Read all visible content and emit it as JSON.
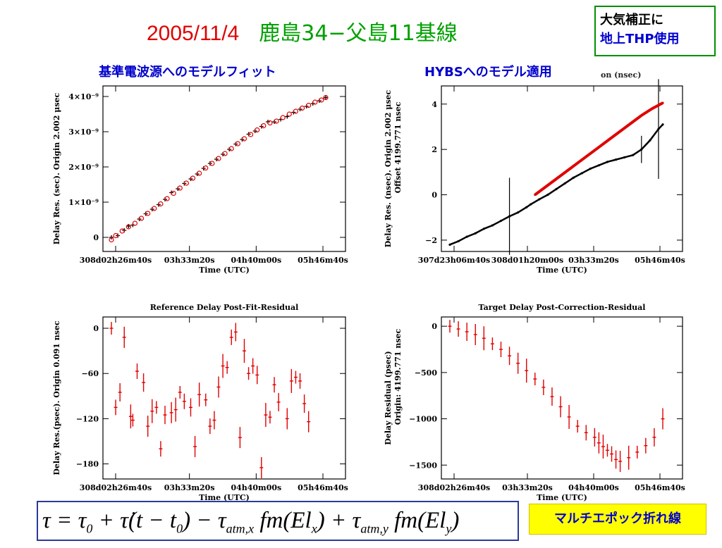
{
  "header": {
    "date": "2005/11/4",
    "title": "鹿島34−父島11基線",
    "note_line1": "大気補正に",
    "note_line2": "地上THP使用"
  },
  "subheaders": {
    "left": "基準電波源へのモデルフィット",
    "right": "HYBSへのモデル適用",
    "right_cut_label": "on (nsec)"
  },
  "formula": {
    "text": "τ = τ0 + τ̇(t − t0) − τatm,x fm(Elx) + τatm,y fm(Ely)"
  },
  "footer_badge": "マルチエポック折れ線",
  "colors": {
    "red": "#e00000",
    "black": "#000000",
    "green": "#00a000",
    "blue": "#0000cc"
  },
  "chart_data": [
    {
      "type": "scatter",
      "title": "",
      "xlabel": "Time (UTC)",
      "ylabel": "Delay Res. (sec). Origin 2.002 μsec",
      "x_ticks": [
        "308d02h26m40s",
        "03h33m20s",
        "04h40m00s",
        "05h46m40s"
      ],
      "y_ticks": [
        "0",
        "1×10⁻⁹",
        "2×10⁻⁹",
        "3×10⁻⁹",
        "4×10⁻⁹"
      ],
      "ylim": [
        -4e-10,
        4.3e-09
      ],
      "series": [
        {
          "color": "black",
          "marker": "plus",
          "x": [
            0.0,
            0.03,
            0.06,
            0.08,
            0.1,
            0.13,
            0.16,
            0.19,
            0.22,
            0.25,
            0.28,
            0.31,
            0.34,
            0.37,
            0.4,
            0.43,
            0.46,
            0.49,
            0.52,
            0.55,
            0.58,
            0.61,
            0.64,
            0.67,
            0.7,
            0.73,
            0.76,
            0.79,
            0.82,
            0.85,
            0.88,
            0.91,
            0.94,
            0.97,
            1.0
          ],
          "y": [
            0.0,
            5e-11,
            2e-10,
            3.2e-10,
            3.5e-10,
            5.2e-10,
            6.7e-10,
            8e-10,
            9.3e-10,
            1.08e-09,
            1.27e-09,
            1.38e-09,
            1.53e-09,
            1.66e-09,
            1.8e-09,
            1.96e-09,
            2.1e-09,
            2.22e-09,
            2.36e-09,
            2.5e-09,
            2.65e-09,
            2.78e-09,
            2.93e-09,
            3.02e-09,
            3.15e-09,
            3.28e-09,
            3.28e-09,
            3.35e-09,
            3.43e-09,
            3.55e-09,
            3.64e-09,
            3.72e-09,
            3.8e-09,
            3.88e-09,
            3.97e-09
          ]
        },
        {
          "color": "red",
          "marker": "circle",
          "x": [
            0.0,
            0.02,
            0.05,
            0.08,
            0.11,
            0.14,
            0.17,
            0.2,
            0.23,
            0.26,
            0.29,
            0.32,
            0.35,
            0.38,
            0.41,
            0.44,
            0.47,
            0.5,
            0.53,
            0.56,
            0.59,
            0.62,
            0.65,
            0.68,
            0.71,
            0.74,
            0.77,
            0.8,
            0.83,
            0.86,
            0.89,
            0.92,
            0.95,
            0.98,
            1.0
          ],
          "y": [
            -7e-11,
            5e-11,
            1.8e-10,
            3e-10,
            4e-10,
            5.4e-10,
            6.8e-10,
            8.2e-10,
            9.5e-10,
            1.1e-09,
            1.25e-09,
            1.4e-09,
            1.54e-09,
            1.68e-09,
            1.82e-09,
            1.97e-09,
            2.1e-09,
            2.24e-09,
            2.38e-09,
            2.52e-09,
            2.66e-09,
            2.8e-09,
            2.92e-09,
            3.05e-09,
            3.17e-09,
            3.25e-09,
            3.3e-09,
            3.4e-09,
            3.5e-09,
            3.58e-09,
            3.67e-09,
            3.75e-09,
            3.84e-09,
            3.9e-09,
            3.97e-09
          ]
        }
      ]
    },
    {
      "type": "line",
      "title": "",
      "xlabel": "Time (UTC)",
      "ylabel": "Delay Res. (nsec). Origin 2.002 μsec",
      "ylabel_right": "Offset 4199.771 nsec",
      "x_ticks": [
        "307d23h06m40s",
        "308d01h20m00s",
        "03h33m20s",
        "05h46m40s"
      ],
      "y_ticks": [
        "−2",
        "0",
        "2",
        "4"
      ],
      "ylim": [
        -2.5,
        4.8
      ],
      "series": [
        {
          "color": "black",
          "x": [
            0.0,
            0.04,
            0.08,
            0.12,
            0.16,
            0.2,
            0.24,
            0.28,
            0.32,
            0.36,
            0.38,
            0.42,
            0.46,
            0.5,
            0.54,
            0.58,
            0.62,
            0.66,
            0.7,
            0.74,
            0.78,
            0.82,
            0.86,
            0.9,
            0.94,
            0.98,
            1.0
          ],
          "y": [
            -2.2,
            -2.05,
            -1.85,
            -1.7,
            -1.5,
            -1.35,
            -1.15,
            -0.95,
            -0.78,
            -0.55,
            -0.42,
            -0.2,
            0.0,
            0.25,
            0.5,
            0.75,
            0.95,
            1.15,
            1.3,
            1.45,
            1.55,
            1.65,
            1.75,
            2.0,
            2.4,
            2.9,
            3.1
          ]
        },
        {
          "color": "red",
          "x": [
            0.4,
            0.45,
            0.5,
            0.55,
            0.6,
            0.65,
            0.7,
            0.75,
            0.8,
            0.85,
            0.9,
            0.95,
            1.0
          ],
          "y": [
            0.0,
            0.35,
            0.7,
            1.05,
            1.4,
            1.75,
            2.1,
            2.45,
            2.8,
            3.15,
            3.5,
            3.8,
            4.05
          ]
        }
      ]
    },
    {
      "type": "scatter",
      "title": "Reference Delay Post-Fit-Residual",
      "xlabel": "Time (UTC)",
      "ylabel": "Delay Res.(psec). Origin 0.091 nsec",
      "x_ticks": [
        "308d02h26m40s",
        "03h33m20s",
        "04h40m00s",
        "05h46m40s"
      ],
      "y_ticks": [
        "0",
        "−60",
        "−120",
        "−180"
      ],
      "ylim": [
        -200,
        15
      ],
      "series": [
        {
          "color": "red",
          "marker": "errorbar",
          "x": [
            0.0,
            0.02,
            0.04,
            0.06,
            0.09,
            0.1,
            0.12,
            0.15,
            0.17,
            0.19,
            0.21,
            0.23,
            0.25,
            0.28,
            0.3,
            0.32,
            0.34,
            0.37,
            0.39,
            0.41,
            0.44,
            0.46,
            0.48,
            0.5,
            0.52,
            0.54,
            0.56,
            0.58,
            0.6,
            0.62,
            0.64,
            0.66,
            0.68,
            0.7,
            0.72,
            0.74,
            0.76,
            0.78,
            0.82,
            0.84,
            0.86,
            0.88,
            0.9,
            0.92
          ],
          "y": [
            0,
            -105,
            -85,
            -12,
            -117,
            -122,
            -57,
            -72,
            -130,
            -110,
            -105,
            -160,
            -115,
            -112,
            -108,
            -85,
            -97,
            -105,
            -157,
            -88,
            -95,
            -130,
            -122,
            -78,
            -50,
            -52,
            -12,
            -5,
            -145,
            -30,
            -60,
            -50,
            -62,
            -185,
            -115,
            -118,
            -75,
            -98,
            -120,
            -70,
            -65,
            -70,
            -100,
            -124
          ]
        }
      ]
    },
    {
      "type": "scatter",
      "title": "Target Delay Post-Correction-Residual",
      "xlabel": "Time (UTC)",
      "ylabel": "Delay Residual (psec)",
      "ylabel_right": "Origin: 4199.771 nsec",
      "x_ticks": [
        "308d02h26m40s",
        "03h33m20s",
        "04h40m00s",
        "05h46m40s"
      ],
      "y_ticks": [
        "0",
        "−500",
        "−1000",
        "−1500"
      ],
      "ylim": [
        -1650,
        100
      ],
      "series": [
        {
          "color": "red",
          "marker": "errorbar",
          "x": [
            0.0,
            0.04,
            0.08,
            0.12,
            0.16,
            0.2,
            0.24,
            0.28,
            0.32,
            0.36,
            0.4,
            0.44,
            0.48,
            0.52,
            0.56,
            0.6,
            0.64,
            0.68,
            0.7,
            0.72,
            0.74,
            0.76,
            0.78,
            0.8,
            0.84,
            0.88,
            0.92,
            0.96,
            1.0
          ],
          "y": [
            0,
            -30,
            -60,
            -90,
            -130,
            -190,
            -250,
            -320,
            -400,
            -480,
            -570,
            -660,
            -760,
            -870,
            -980,
            -1080,
            -1150,
            -1200,
            -1260,
            -1300,
            -1340,
            -1380,
            -1440,
            -1460,
            -1420,
            -1360,
            -1290,
            -1200,
            -1000
          ]
        }
      ]
    }
  ]
}
